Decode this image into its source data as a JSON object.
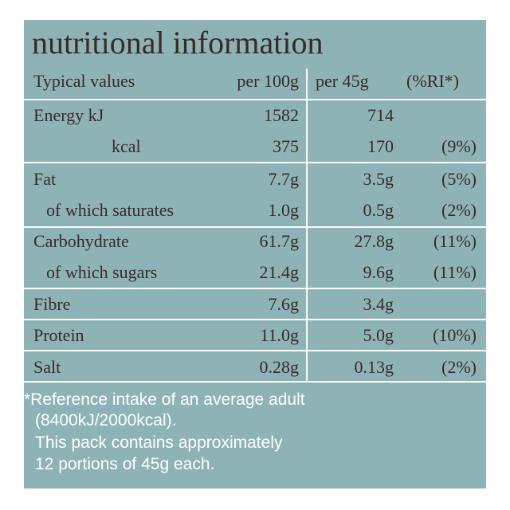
{
  "title": "nutritional information",
  "header": {
    "typical_values": "Typical values",
    "per_100g": "per 100g",
    "per_45g": "per 45g",
    "ri": "(%RI*)"
  },
  "rows": [
    {
      "label": "Energy kJ",
      "per_100g": "1582",
      "per_45g": "714"
    },
    {
      "label": "kcal",
      "per_100g": "375",
      "per_45g": "170",
      "ri": "(9%)"
    },
    {
      "label": "Fat",
      "per_100g": "7.7g",
      "per_45g": "3.5g",
      "ri": "(5%)"
    },
    {
      "label": "of which saturates",
      "per_100g": "1.0g",
      "per_45g": "0.5g",
      "ri": "(2%)"
    },
    {
      "label": "Carbohydrate",
      "per_100g": "61.7g",
      "per_45g": "27.8g",
      "ri": "(11%)"
    },
    {
      "label": "of which sugars",
      "per_100g": "21.4g",
      "per_45g": "9.6g",
      "ri": "(11%)"
    },
    {
      "label": "Fibre",
      "per_100g": "7.6g",
      "per_45g": "3.4g"
    },
    {
      "label": "Protein",
      "per_100g": "11.0g",
      "per_45g": "5.0g",
      "ri": "(10%)"
    },
    {
      "label": "Salt",
      "per_100g": "0.28g",
      "per_45g": "0.13g",
      "ri": "(2%)"
    }
  ],
  "footnote": [
    "*Reference intake of an average adult",
    "(8400kJ/2000kcal).",
    "This pack contains approximately",
    "12 portions of 45g each."
  ]
}
